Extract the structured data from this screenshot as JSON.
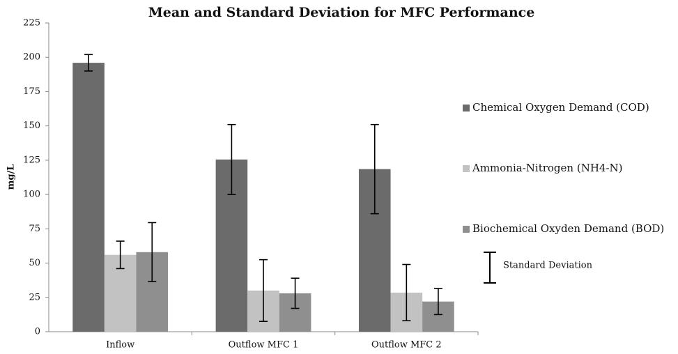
{
  "chart_data": {
    "type": "bar",
    "title": "Mean and Standard Deviation for MFC Performance",
    "y_label": "mg/L",
    "categories": [
      "Inflow",
      "Outflow MFC 1",
      "Outflow MFC 2"
    ],
    "series": [
      {
        "name": "Chemical Oxygen Demand (COD)",
        "color": "#6b6b6b",
        "values": [
          196,
          125.5,
          118.5
        ],
        "errors": [
          6,
          25.5,
          32.5
        ]
      },
      {
        "name": "Ammonia-Nitrogen (NH4-N)",
        "color": "#c2c2c2",
        "values": [
          56,
          30,
          28.5
        ],
        "errors": [
          10,
          22.5,
          20.5
        ]
      },
      {
        "name": "Biochemical Oxyden Demand (BOD)",
        "color": "#8f8f8f",
        "values": [
          58,
          28,
          22
        ],
        "errors": [
          21.5,
          11,
          9.5
        ]
      }
    ],
    "error_label": "Standard Deviation",
    "ylim": [
      0,
      225
    ],
    "yticks": [
      0,
      25,
      50,
      75,
      100,
      125,
      150,
      175,
      200,
      225
    ],
    "grid": false
  }
}
